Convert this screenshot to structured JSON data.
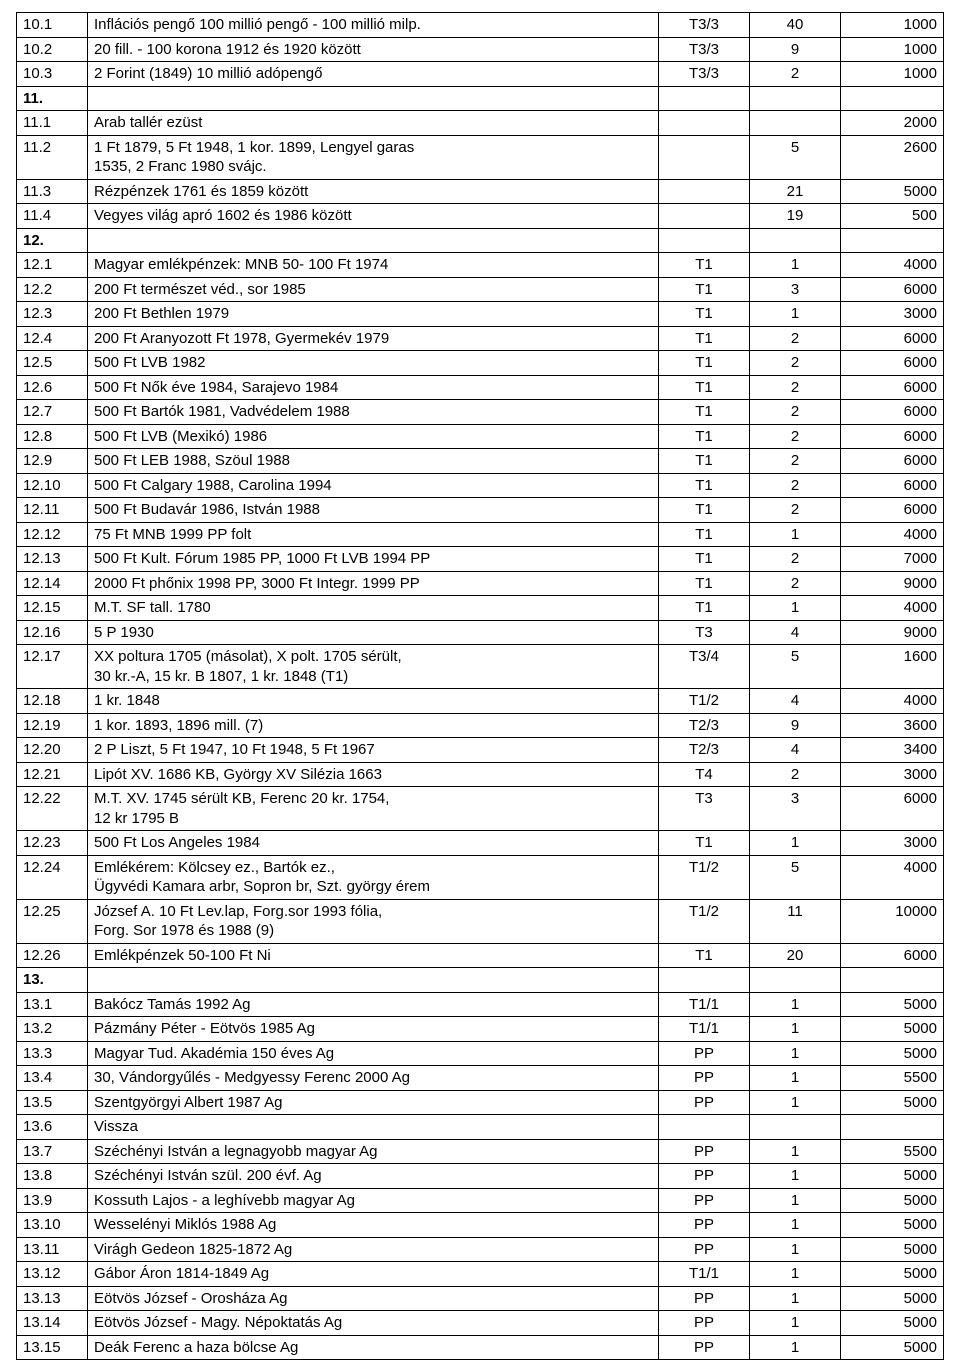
{
  "table": {
    "columns": [
      {
        "class": "col-id"
      },
      {
        "class": "col-desc"
      },
      {
        "class": "col-grade"
      },
      {
        "class": "col-qty"
      },
      {
        "class": "col-price"
      }
    ],
    "rows": [
      {
        "id": "10.1",
        "desc": "Inflációs pengő  100 millió pengő - 100 millió milp.",
        "grade": "T3/3",
        "qty": "40",
        "price": "1000"
      },
      {
        "id": "10.2",
        "desc": "20 fill. - 100 korona   1912 és 1920 között",
        "grade": "T3/3",
        "qty": "9",
        "price": "1000"
      },
      {
        "id": "10.3",
        "desc": "2 Forint (1849) 10 millió adópengő",
        "grade": "T3/3",
        "qty": "2",
        "price": "1000"
      },
      {
        "id": "11.",
        "desc": "",
        "grade": "",
        "qty": "",
        "price": "",
        "bold": true
      },
      {
        "id": "11.1",
        "desc": "Arab tallér  ezüst",
        "grade": "",
        "qty": "",
        "price": "2000"
      },
      {
        "id": "11.2",
        "desc": "1 Ft  1879, 5 Ft 1948, 1 kor. 1899, Lengyel garas\n1535, 2 Franc 1980  svájc.",
        "grade": "",
        "qty": "5",
        "price": "2600"
      },
      {
        "id": "11.3",
        "desc": "Rézpénzek 1761 és 1859 között",
        "grade": "",
        "qty": "21",
        "price": "5000"
      },
      {
        "id": "11.4",
        "desc": "Vegyes világ apró 1602 és 1986 között",
        "grade": "",
        "qty": "19",
        "price": "500"
      },
      {
        "id": "12.",
        "desc": "",
        "grade": "",
        "qty": "",
        "price": "",
        "bold": true
      },
      {
        "id": "12.1",
        "desc": "Magyar emlékpénzek: MNB 50- 100 Ft 1974",
        "grade": "T1",
        "qty": "1",
        "price": "4000"
      },
      {
        "id": "12.2",
        "desc": "200 Ft természet véd., sor  1985",
        "grade": "T1",
        "qty": "3",
        "price": "6000"
      },
      {
        "id": "12.3",
        "desc": "200 Ft Bethlen  1979",
        "grade": "T1",
        "qty": "1",
        "price": "3000"
      },
      {
        "id": "12.4",
        "desc": "200 Ft Aranyozott Ft  1978, Gyermekév  1979",
        "grade": "T1",
        "qty": "2",
        "price": "6000"
      },
      {
        "id": "12.5",
        "desc": "500 Ft  LVB  1982",
        "grade": "T1",
        "qty": "2",
        "price": "6000"
      },
      {
        "id": "12.6",
        "desc": "500 Ft  Nők éve  1984, Sarajevo  1984",
        "grade": "T1",
        "qty": "2",
        "price": "6000"
      },
      {
        "id": "12.7",
        "desc": "500 Ft Bartók 1981, Vadvédelem 1988",
        "grade": "T1",
        "qty": "2",
        "price": "6000"
      },
      {
        "id": "12.8",
        "desc": "500 Ft  LVB (Mexikó) 1986",
        "grade": "T1",
        "qty": "2",
        "price": "6000"
      },
      {
        "id": "12.9",
        "desc": "500 Ft  LEB 1988, Szöul  1988",
        "grade": "T1",
        "qty": "2",
        "price": "6000"
      },
      {
        "id": "12.10",
        "desc": "500 Ft  Calgary 1988, Carolina  1994",
        "grade": "T1",
        "qty": "2",
        "price": "6000"
      },
      {
        "id": "12.11",
        "desc": "500 Ft  Budavár 1986, István  1988",
        "grade": "T1",
        "qty": "2",
        "price": "6000"
      },
      {
        "id": "12.12",
        "desc": "75 Ft MNB 1999 PP  folt",
        "grade": "T1",
        "qty": "1",
        "price": "4000"
      },
      {
        "id": "12.13",
        "desc": "500 Ft Kult. Fórum  1985 PP, 1000 Ft  LVB  1994  PP",
        "grade": "T1",
        "qty": "2",
        "price": "7000"
      },
      {
        "id": "12.14",
        "desc": "2000 Ft phőnix  1998 PP,  3000 Ft Integr.  1999 PP",
        "grade": "T1",
        "qty": "2",
        "price": "9000"
      },
      {
        "id": "12.15",
        "desc": "M.T.  SF tall.  1780",
        "grade": "T1",
        "qty": "1",
        "price": "4000"
      },
      {
        "id": "12.16",
        "desc": "5 P 1930",
        "grade": "T3",
        "qty": "4",
        "price": "9000"
      },
      {
        "id": "12.17",
        "desc": "XX poltura 1705  (másolat), X polt. 1705 sérült,\n30 kr.-A, 15 kr.  B  1807,  1 kr.  1848 (T1)",
        "grade": "T3/4",
        "qty": "5",
        "price": "1600"
      },
      {
        "id": "12.18",
        "desc": "1 kr. 1848",
        "grade": "T1/2",
        "qty": "4",
        "price": "4000"
      },
      {
        "id": "12.19",
        "desc": "1 kor. 1893, 1896 mill. (7)",
        "grade": "T2/3",
        "qty": "9",
        "price": "3600"
      },
      {
        "id": "12.20",
        "desc": "2 P Liszt, 5 Ft 1947, 10 Ft 1948, 5 Ft  1967",
        "grade": "T2/3",
        "qty": "4",
        "price": "3400"
      },
      {
        "id": "12.21",
        "desc": "Lipót XV. 1686 KB, György XV Silézia 1663",
        "grade": "T4",
        "qty": "2",
        "price": "3000"
      },
      {
        "id": "12.22",
        "desc": "M.T. XV. 1745 sérült KB, Ferenc 20 kr. 1754,\n12 kr 1795 B",
        "grade": "T3",
        "qty": "3",
        "price": "6000"
      },
      {
        "id": "12.23",
        "desc": "500 Ft  Los Angeles  1984",
        "grade": "T1",
        "qty": "1",
        "price": "3000"
      },
      {
        "id": "12.24",
        "desc": "Emlékérem: Kölcsey ez., Bartók  ez.,\nÜgyvédi Kamara arbr, Sopron br,  Szt. györgy érem",
        "grade": "T1/2",
        "qty": "5",
        "price": "4000"
      },
      {
        "id": "12.25",
        "desc": "József A.  10 Ft Lev.lap, Forg.sor  1993 fólia,\nForg. Sor  1978 és 1988 (9)",
        "grade": "T1/2",
        "qty": "11",
        "price": "10000"
      },
      {
        "id": "12.26",
        "desc": "Emlékpénzek 50-100 Ft  Ni",
        "grade": "T1",
        "qty": "20",
        "price": "6000"
      },
      {
        "id": "13.",
        "desc": "",
        "grade": "",
        "qty": "",
        "price": "",
        "bold": true
      },
      {
        "id": "13.1",
        "desc": "Bakócz Tamás  1992   Ag",
        "grade": "T1/1",
        "qty": "1",
        "price": "5000"
      },
      {
        "id": "13.2",
        "desc": "Pázmány Péter - Eötvös   1985   Ag",
        "grade": "T1/1",
        "qty": "1",
        "price": "5000"
      },
      {
        "id": "13.3",
        "desc": "Magyar Tud. Akadémia  150 éves  Ag",
        "grade": "PP",
        "qty": "1",
        "price": "5000"
      },
      {
        "id": "13.4",
        "desc": "30, Vándorgyűlés - Medgyessy Ferenc  2000  Ag",
        "grade": "PP",
        "qty": "1",
        "price": "5500"
      },
      {
        "id": "13.5",
        "desc": "Szentgyörgyi Albert 1987   Ag",
        "grade": "PP",
        "qty": "1",
        "price": "5000"
      },
      {
        "id": "13.6",
        "desc": "Vissza",
        "grade": "",
        "qty": "",
        "price": ""
      },
      {
        "id": "13.7",
        "desc": "Széchényi István a legnagyobb magyar  Ag",
        "grade": "PP",
        "qty": "1",
        "price": "5500"
      },
      {
        "id": "13.8",
        "desc": "Széchényi István szül. 200 évf.    Ag",
        "grade": "PP",
        "qty": "1",
        "price": "5000"
      },
      {
        "id": "13.9",
        "desc": "Kossuth Lajos - a leghívebb magyar   Ag",
        "grade": "PP",
        "qty": "1",
        "price": "5000"
      },
      {
        "id": "13.10",
        "desc": "Wesselényi Miklós  1988   Ag",
        "grade": "PP",
        "qty": "1",
        "price": "5000"
      },
      {
        "id": "13.11",
        "desc": "Virágh Gedeon  1825-1872   Ag",
        "grade": "PP",
        "qty": "1",
        "price": "5000"
      },
      {
        "id": "13.12",
        "desc": "Gábor Áron 1814-1849   Ag",
        "grade": "T1/1",
        "qty": "1",
        "price": "5000"
      },
      {
        "id": "13.13",
        "desc": "Eötvös József - Orosháza   Ag",
        "grade": "PP",
        "qty": "1",
        "price": "5000"
      },
      {
        "id": "13.14",
        "desc": "Eötvös József - Magy. Népoktatás   Ag",
        "grade": "PP",
        "qty": "1",
        "price": "5000"
      },
      {
        "id": "13.15",
        "desc": "Deák Ferenc a haza bölcse  Ag",
        "grade": "PP",
        "qty": "1",
        "price": "5000"
      }
    ]
  }
}
